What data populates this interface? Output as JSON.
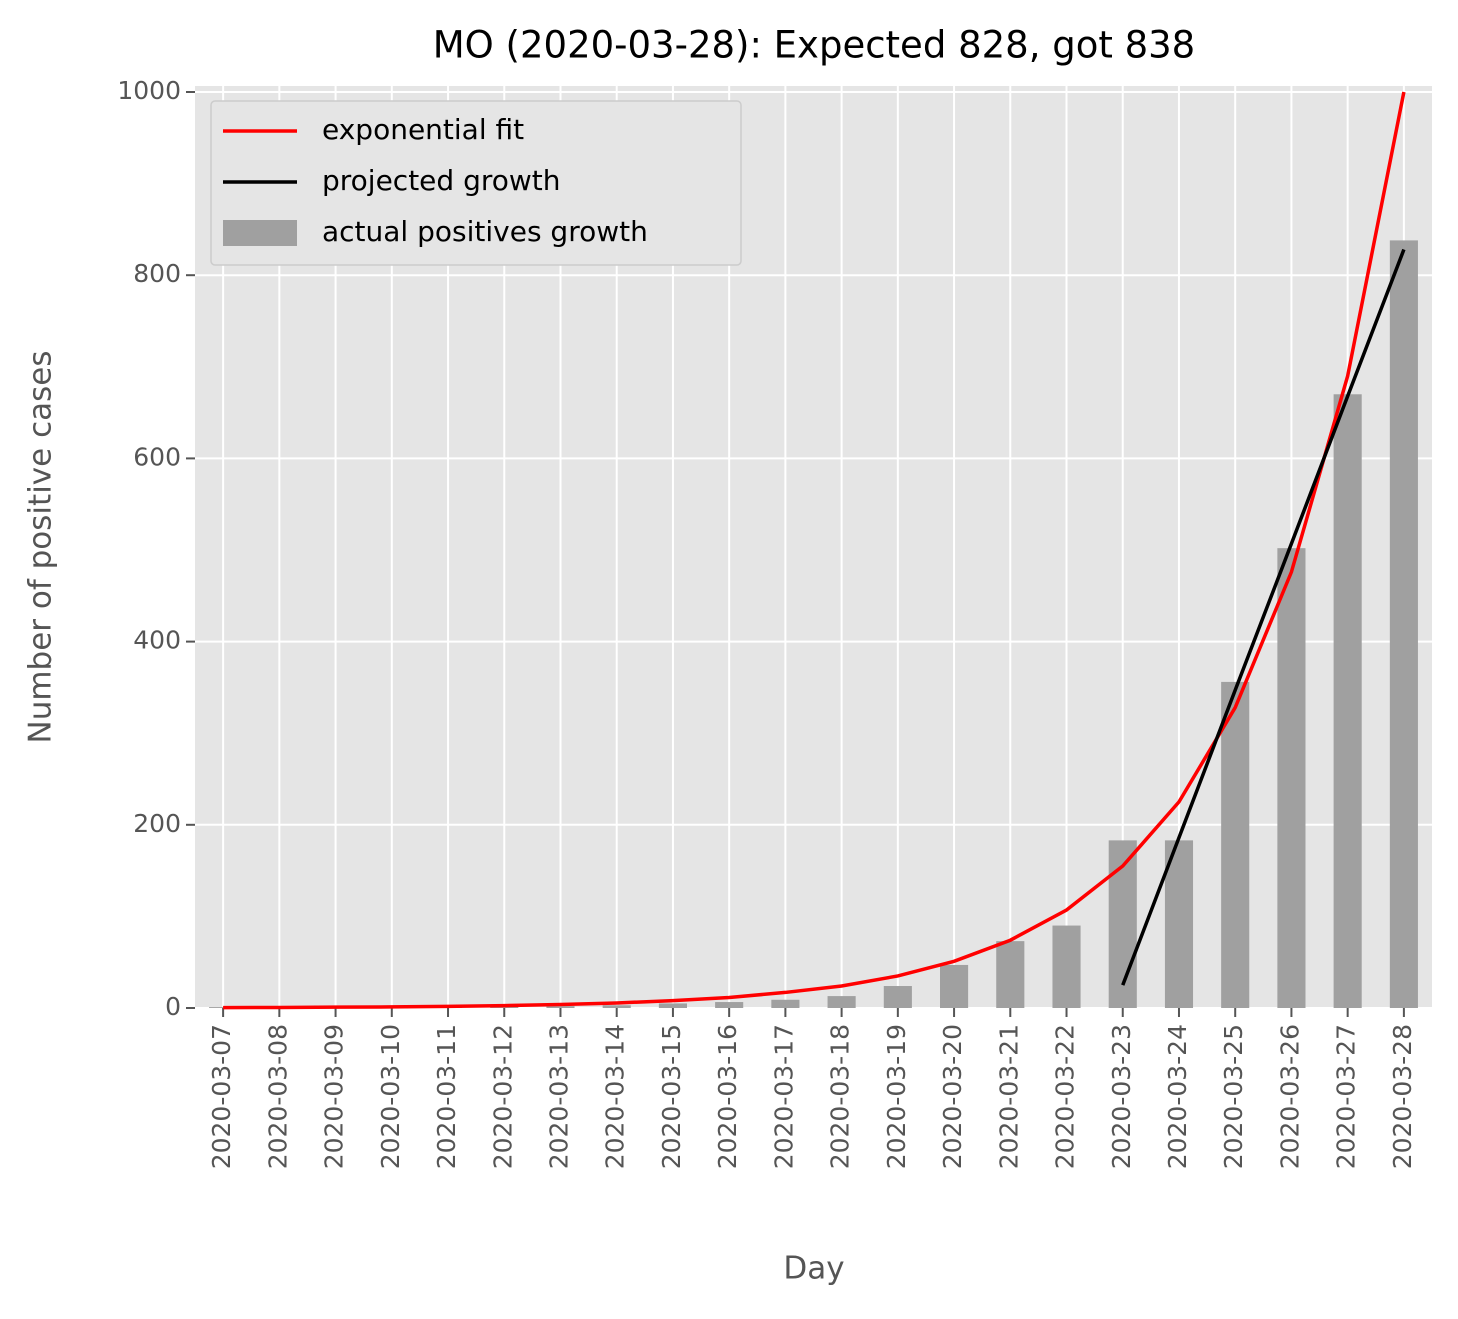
{
  "chart_data": {
    "type": "bar_line",
    "title": "MO (2020-03-28): Expected 828, got 838",
    "x_label": "Day",
    "y_label": "Number of positive cases",
    "categories": [
      "2020-03-07",
      "2020-03-08",
      "2020-03-09",
      "2020-03-10",
      "2020-03-11",
      "2020-03-12",
      "2020-03-13",
      "2020-03-14",
      "2020-03-15",
      "2020-03-16",
      "2020-03-17",
      "2020-03-18",
      "2020-03-19",
      "2020-03-20",
      "2020-03-21",
      "2020-03-22",
      "2020-03-23",
      "2020-03-24",
      "2020-03-25",
      "2020-03-26",
      "2020-03-27",
      "2020-03-28"
    ],
    "series": [
      {
        "name": "exponential fit",
        "type": "line",
        "color": "#ff0000",
        "values": [
          0.4,
          0.6,
          0.9,
          1.2,
          1.8,
          2.6,
          3.8,
          5.5,
          8,
          11.5,
          17,
          24,
          35,
          51,
          74,
          107,
          155,
          225,
          328,
          476,
          690,
          1000
        ]
      },
      {
        "name": "projected growth",
        "type": "line",
        "color": "#000000",
        "values": [
          null,
          null,
          null,
          null,
          null,
          null,
          null,
          null,
          null,
          null,
          null,
          null,
          null,
          null,
          null,
          null,
          25,
          186,
          347,
          507,
          668,
          828
        ]
      },
      {
        "name": "actual positives growth",
        "type": "bar",
        "color": "#a0a0a0",
        "values": [
          1,
          1,
          1,
          1,
          1,
          2,
          2,
          3,
          5,
          6.5,
          9,
          13,
          24,
          47,
          73,
          90,
          183,
          183,
          356,
          502,
          670,
          838
        ]
      }
    ],
    "ylim": [
      0,
      1000
    ],
    "yticks": [
      0,
      200,
      400,
      600,
      800,
      1000
    ],
    "grid": true,
    "legend": "upper left"
  }
}
